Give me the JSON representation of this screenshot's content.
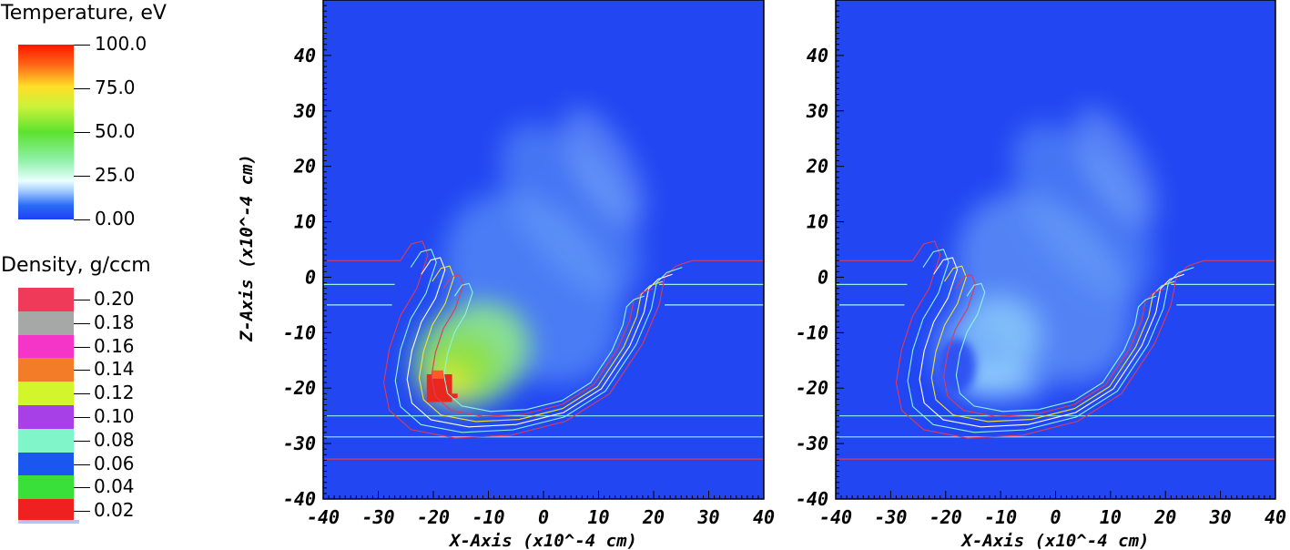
{
  "legends": {
    "temperature": {
      "title": "Temperature, eV",
      "labels": [
        "100.0",
        "75.0",
        "50.0",
        "25.0",
        "0.00"
      ]
    },
    "density": {
      "title": "Density, g/ccm",
      "labels": [
        "0.20",
        "0.18",
        "0.16",
        "0.14",
        "0.12",
        "0.10",
        "0.08",
        "0.06",
        "0.04",
        "0.02"
      ],
      "colors": [
        "#ef3a5a",
        "#a6a8a8",
        "#f534c8",
        "#f27c27",
        "#d3f52b",
        "#a840e8",
        "#7ff5c9",
        "#1a57f0",
        "#3ae03a",
        "#ef2020"
      ]
    }
  },
  "chart_data": [
    {
      "type": "heatmap",
      "panel": "left",
      "xlabel": "X-Axis  (x10^-4 cm)",
      "ylabel": "Z-Axis  (x10^-4 cm)",
      "xlim": [
        -40,
        40
      ],
      "ylim": [
        -40,
        50
      ],
      "xticks": [
        "-40",
        "-30",
        "-20",
        "-10",
        "0",
        "10",
        "20",
        "30",
        "40"
      ],
      "yticks": [
        "-40",
        "-30",
        "-20",
        "-10",
        "0",
        "10",
        "20",
        "30",
        "40"
      ],
      "colorbar_range": [
        0,
        100
      ],
      "hotspot": {
        "x": -19,
        "z": -20,
        "value": 100
      }
    },
    {
      "type": "heatmap",
      "panel": "right",
      "xlabel": "X-Axis  (x10^-4 cm)",
      "ylabel": "",
      "xlim": [
        -40,
        40
      ],
      "ylim": [
        -40,
        50
      ],
      "xticks": [
        "-40",
        "-30",
        "-20",
        "-10",
        "0",
        "10",
        "20",
        "30",
        "40"
      ],
      "yticks": [
        "-40",
        "-30",
        "-20",
        "-10",
        "0",
        "10",
        "20",
        "30",
        "40"
      ],
      "colorbar_range": [
        0,
        100
      ]
    }
  ]
}
